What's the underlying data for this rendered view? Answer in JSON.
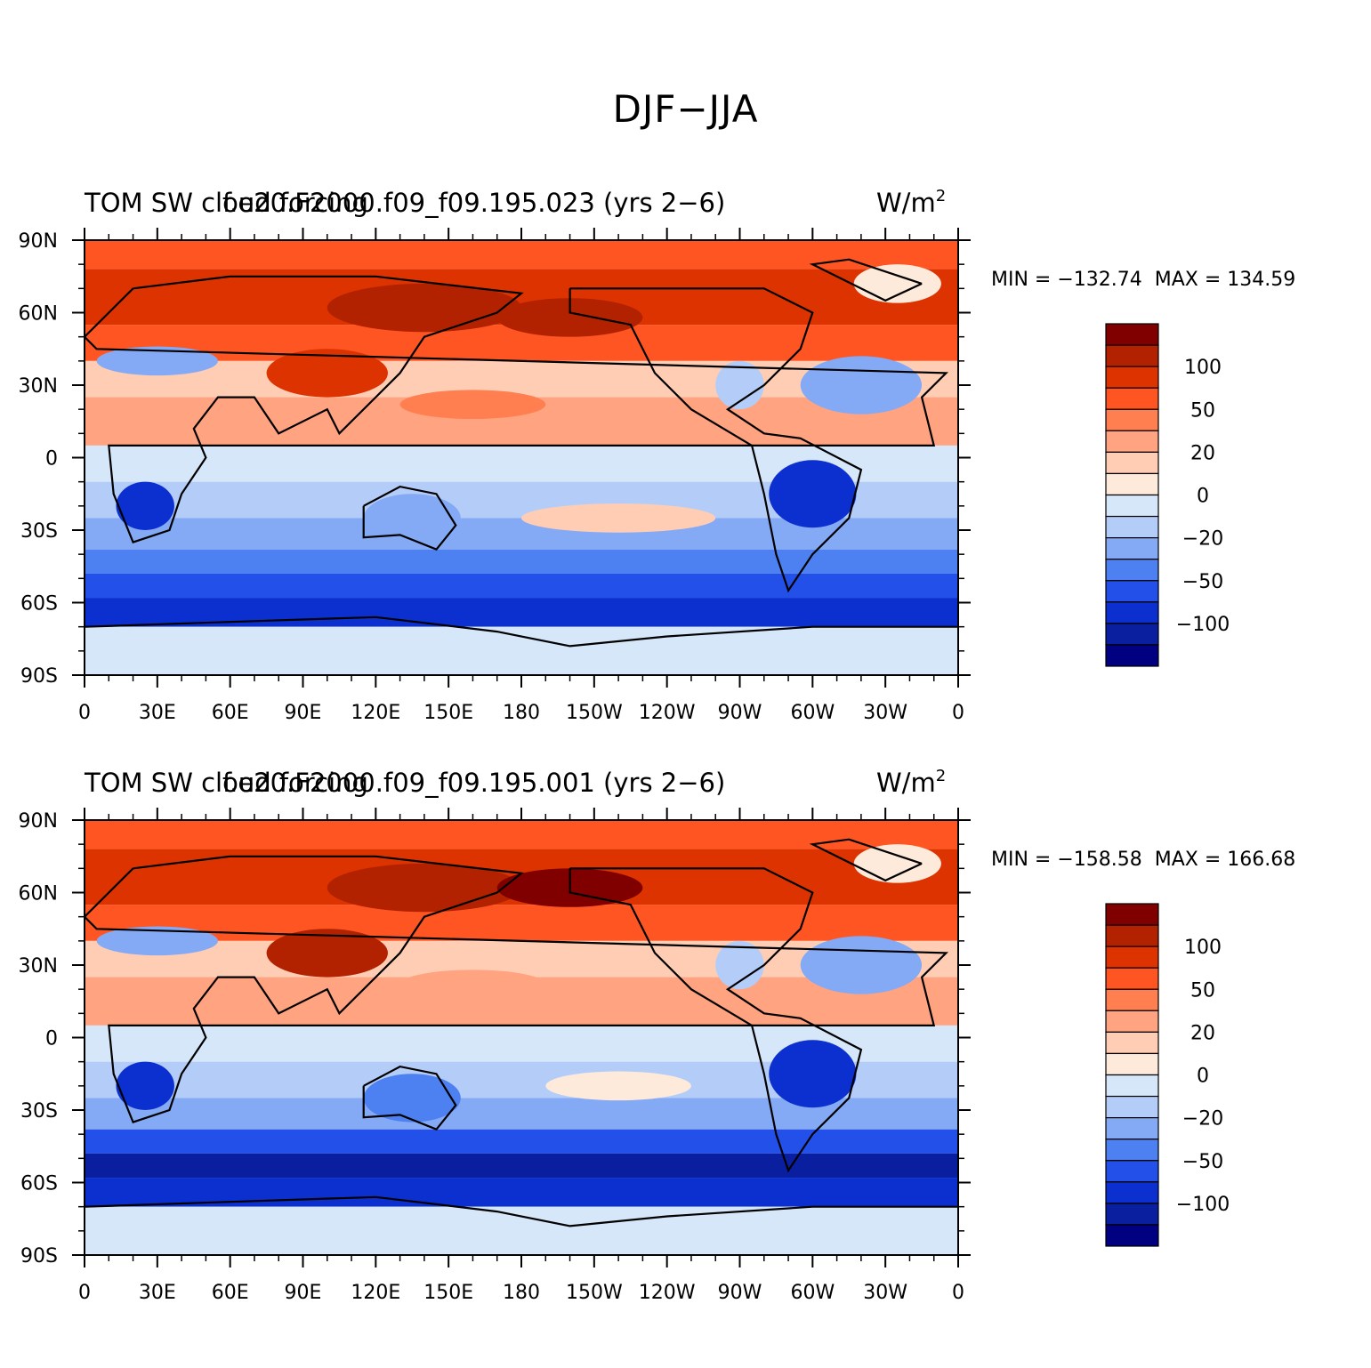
{
  "figure_title": "DJF−JJA",
  "panels": [
    {
      "left_title": "TOM SW cloud forcing",
      "case_title": "f.e20.F2000.f09_f09.195.023 (yrs 2−6)",
      "units": "W/m",
      "units_sup": "2",
      "min_label": "MIN = −132.74",
      "max_label": "MAX = 134.59",
      "min_value": -132.74,
      "max_value": 134.59
    },
    {
      "left_title": "TOM SW cloud forcing",
      "case_title": "f.e20.F2000.f09_f09.195.001 (yrs 2−6)",
      "units": "W/m",
      "units_sup": "2",
      "min_label": "MIN = −158.58",
      "max_label": "MAX = 166.68",
      "min_value": -158.58,
      "max_value": 166.68
    }
  ],
  "lat_ticks": [
    "90N",
    "60N",
    "30N",
    "0",
    "30S",
    "60S",
    "90S"
  ],
  "lon_ticks": [
    "0",
    "30E",
    "60E",
    "90E",
    "120E",
    "150E",
    "180",
    "150W",
    "120W",
    "90W",
    "60W",
    "30W",
    "0"
  ],
  "colorbar": {
    "colors": [
      "#800000",
      "#b22200",
      "#dd3300",
      "#ff5522",
      "#ff7f50",
      "#ffa380",
      "#ffcdb4",
      "#fdeadb",
      "#d6e7fa",
      "#b4cdf8",
      "#85aaf5",
      "#4d80f0",
      "#2350e8",
      "#0c30cf",
      "#0a1fa0",
      "#000080"
    ],
    "labels": [
      "100",
      "50",
      "20",
      "0",
      "−20",
      "−50",
      "−100"
    ]
  },
  "chart_data": {
    "type": "heatmap",
    "title": "DJF−JJA",
    "variable": "TOM SW cloud forcing",
    "units": "W/m2",
    "x_axis": "longitude",
    "y_axis": "latitude",
    "xlim": [
      0,
      360
    ],
    "ylim": [
      -90,
      90
    ],
    "contour_levels": [
      -100,
      -50,
      -20,
      0,
      20,
      50,
      100
    ],
    "maps": [
      {
        "case": "f.e20.F2000.f09_f09.195.023 (yrs 2−6)",
        "min": -132.74,
        "max": 134.59
      },
      {
        "case": "f.e20.F2000.f09_f09.195.001 (yrs 2−6)",
        "min": -158.58,
        "max": 166.68
      }
    ]
  }
}
